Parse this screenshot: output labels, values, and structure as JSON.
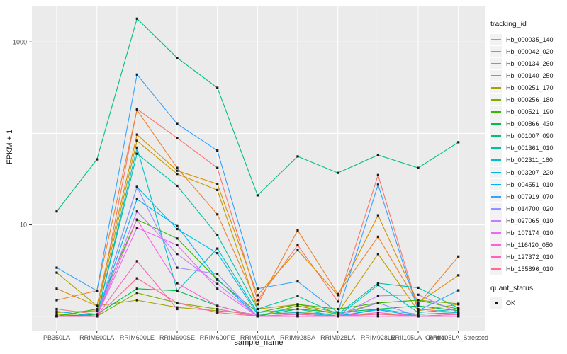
{
  "figure": {
    "background": "#ffffff",
    "panel_bg": "#ebebeb",
    "grid_color": "#ffffff",
    "tick_color": "#333333",
    "tick_text_color": "#4d4d4d",
    "text_color": "#1a1a1a",
    "point_color": "#1a1a1a",
    "legend_key_bg": "#f2f2f2"
  },
  "legend": {
    "tracking_title": "tracking_id",
    "quant_title": "quant_status",
    "quant_items": [
      {
        "label": "OK",
        "marker": "square-point-icon"
      }
    ]
  },
  "chart_data": {
    "type": "line",
    "title": "",
    "xlabel": "sample_name",
    "ylabel": "FPKM + 1",
    "y_scale": "log10",
    "ylim": [
      0.7,
      2400
    ],
    "grid": true,
    "legend_position": "right",
    "point_marker": "small-black-square",
    "y_ticks": [
      {
        "value": 1000,
        "label": "1000"
      },
      {
        "value": 10,
        "label": "10"
      }
    ],
    "y_gridlines": [
      1,
      10,
      100,
      1000
    ],
    "categories": [
      "PB350LA",
      "RRIM600LA",
      "RRIM600LE",
      "RRIM600SE",
      "RRIM600PE",
      "RRIM901LA",
      "RRIM928BA",
      "RRIM928LA",
      "RRIM928LE",
      "RRII105LA_Control",
      "RRII105LA_Stressed"
    ],
    "series": [
      {
        "name": "Hb_000035_140",
        "color": "#F8766D",
        "values": [
          1.2,
          1.05,
          185,
          89,
          42,
          1.5,
          6.0,
          1.45,
          35,
          1.2,
          1.1
        ]
      },
      {
        "name": "Hb_000042_020",
        "color": "#EA8331",
        "values": [
          1.5,
          1.9,
          180,
          42,
          13,
          1.35,
          8.7,
          1.75,
          7.4,
          1.35,
          4.5
        ]
      },
      {
        "name": "Hb_000134_260",
        "color": "#D89000",
        "values": [
          2.0,
          1.3,
          97,
          39,
          28,
          1.7,
          5.3,
          1.7,
          12.7,
          1.4,
          2.8
        ]
      },
      {
        "name": "Hb_000140_250",
        "color": "#C09B00",
        "values": [
          1.1,
          1.15,
          83,
          36,
          24,
          1.2,
          1.35,
          1.1,
          4.8,
          1.15,
          1.35
        ]
      },
      {
        "name": "Hb_000251_170",
        "color": "#A3A500",
        "values": [
          3.0,
          1.3,
          1.5,
          1.25,
          1.15,
          1.05,
          1.1,
          1.05,
          1.05,
          1.05,
          1.1
        ]
      },
      {
        "name": "Hb_000256_180",
        "color": "#7CAE00",
        "values": [
          1.05,
          1.0,
          1.8,
          1.4,
          1.2,
          1.0,
          1.3,
          1.05,
          1.4,
          1.5,
          1.37
        ]
      },
      {
        "name": "Hb_000521_190",
        "color": "#39B600",
        "values": [
          1.0,
          1.2,
          11.4,
          7.1,
          2.5,
          1.1,
          1.35,
          1.2,
          1.4,
          1.5,
          1.2
        ]
      },
      {
        "name": "Hb_000866_430",
        "color": "#00BB4E",
        "values": [
          1.0,
          1.05,
          2.0,
          1.9,
          1.3,
          1.0,
          1.2,
          1.1,
          1.2,
          1.3,
          1.15
        ]
      },
      {
        "name": "Hb_001007_090",
        "color": "#00BF7D",
        "values": [
          14,
          52,
          1800,
          670,
          315,
          21,
          56,
          37,
          58,
          42,
          80
        ]
      },
      {
        "name": "Hb_001361_010",
        "color": "#00C1A3",
        "values": [
          1.0,
          1.0,
          60,
          26.7,
          7.7,
          1.2,
          1.66,
          1.05,
          2.3,
          2.05,
          1.23
        ]
      },
      {
        "name": "Hb_002311_160",
        "color": "#00BFC4",
        "values": [
          1.0,
          1.0,
          70,
          1.9,
          5.5,
          1.1,
          1.2,
          1.0,
          2.2,
          1.1,
          1.2
        ]
      },
      {
        "name": "Hb_003207_220",
        "color": "#00BAE0",
        "values": [
          1.0,
          1.0,
          26,
          9.0,
          4.9,
          1.05,
          1.1,
          1.0,
          1.2,
          1.05,
          1.1
        ]
      },
      {
        "name": "Hb_004551_010",
        "color": "#00B0F6",
        "values": [
          1.13,
          1.0,
          19,
          9.7,
          2.55,
          1.0,
          1.05,
          1.0,
          1.18,
          1.0,
          1.05
        ]
      },
      {
        "name": "Hb_007919_070",
        "color": "#35A2FF",
        "values": [
          3.4,
          1.9,
          440,
          127,
          65,
          2.0,
          2.4,
          1.1,
          27.5,
          1.15,
          1.92
        ]
      },
      {
        "name": "Hb_014700_020",
        "color": "#9590FF",
        "values": [
          1.0,
          1.0,
          26,
          3.4,
          2.9,
          1.0,
          1.0,
          1.0,
          1.4,
          1.0,
          1.0
        ]
      },
      {
        "name": "Hb_027065_010",
        "color": "#C77CFF",
        "values": [
          1.0,
          1.0,
          14,
          4.8,
          2.26,
          1.0,
          1.05,
          1.0,
          1.67,
          1.72,
          1.1
        ]
      },
      {
        "name": "Hb_107174_010",
        "color": "#E76BF3",
        "values": [
          1.0,
          1.0,
          9.3,
          6.0,
          2.0,
          1.0,
          1.0,
          1.0,
          1.0,
          1.0,
          1.0
        ]
      },
      {
        "name": "Hb_116420_050",
        "color": "#FA62DB",
        "values": [
          1.0,
          1.0,
          11.4,
          2.3,
          1.3,
          1.0,
          1.0,
          1.0,
          1.1,
          1.0,
          1.05
        ]
      },
      {
        "name": "Hb_127372_010",
        "color": "#FF62BC",
        "values": [
          1.0,
          1.0,
          4.0,
          1.2,
          1.2,
          1.0,
          1.0,
          1.0,
          1.0,
          1.0,
          1.0
        ]
      },
      {
        "name": "Hb_155896_010",
        "color": "#FF6A98",
        "values": [
          1.0,
          1.0,
          2.6,
          1.4,
          1.1,
          1.0,
          1.05,
          1.0,
          1.05,
          1.0,
          1.05
        ]
      }
    ]
  }
}
